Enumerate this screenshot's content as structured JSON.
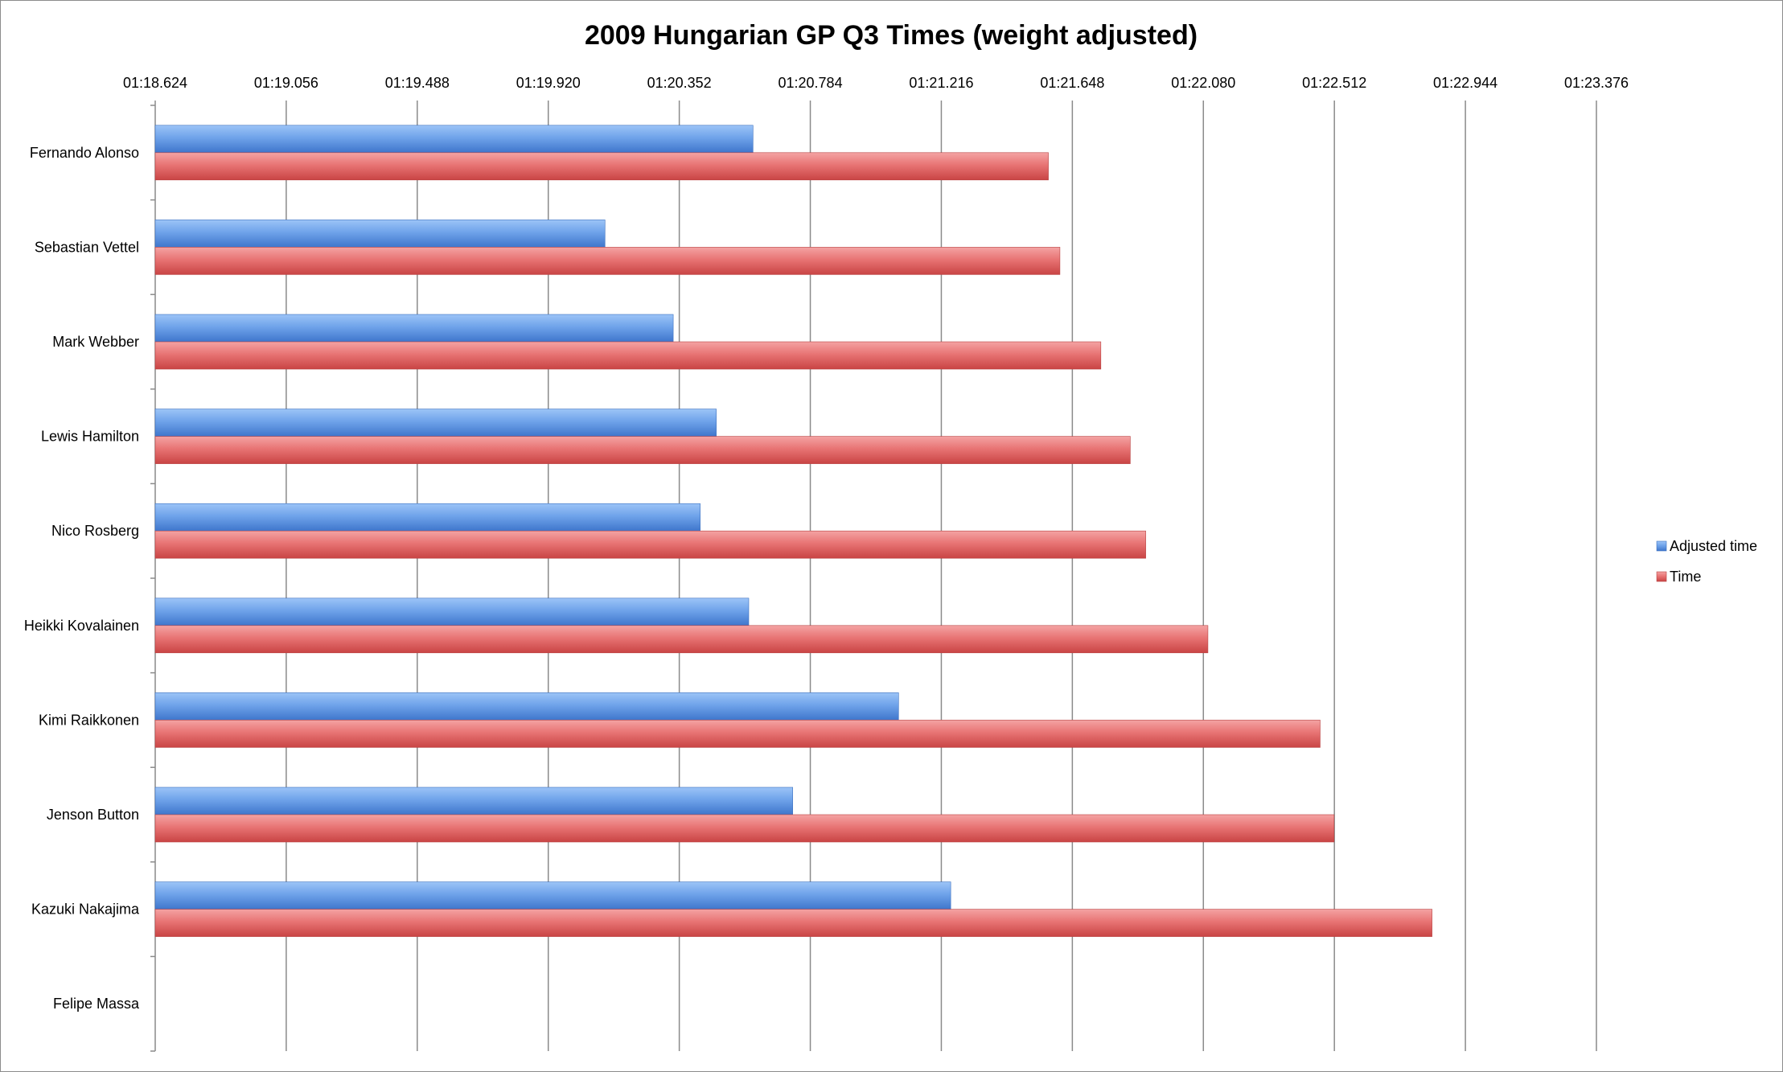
{
  "chart_data": {
    "type": "bar",
    "orientation": "horizontal",
    "title": "2009 Hungarian GP Q3 Times (weight adjusted)",
    "xlabel": "",
    "ylabel": "",
    "x_axis_position": "top",
    "xlim_seconds": [
      78.624,
      83.376
    ],
    "tick_labels": [
      "01:18.624",
      "01:19.056",
      "01:19.488",
      "01:19.920",
      "01:20.352",
      "01:20.784",
      "01:21.216",
      "01:21.648",
      "01:22.080",
      "01:22.512",
      "01:22.944",
      "01:23.376"
    ],
    "grid": "vertical major gridlines",
    "legend_position": "right",
    "categories": [
      "Fernando Alonso",
      "Sebastian Vettel",
      "Mark Webber",
      "Lewis Hamilton",
      "Nico Rosberg",
      "Heikki Kovalainen",
      "Kimi Raikkonen",
      "Jenson Button",
      "Kazuki Nakajima",
      "Felipe Massa"
    ],
    "series": [
      {
        "name": "Adjusted time",
        "color": "#4f81bd",
        "values_seconds": [
          80.595,
          80.107,
          80.332,
          80.474,
          80.421,
          80.581,
          81.075,
          80.726,
          81.247,
          null
        ]
      },
      {
        "name": "Time",
        "color": "#c0504d",
        "values_seconds": [
          81.569,
          81.607,
          81.742,
          81.839,
          81.89,
          82.095,
          82.465,
          82.511,
          82.834,
          null
        ]
      }
    ]
  }
}
